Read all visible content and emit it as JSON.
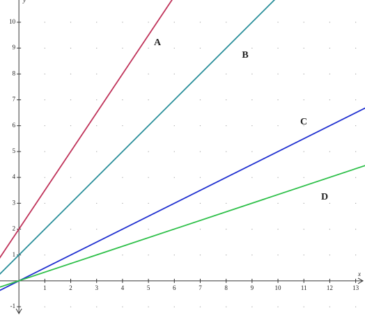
{
  "chart_data": {
    "type": "line",
    "xlabel": "x",
    "ylabel": "y",
    "x": [
      -1,
      14
    ],
    "series": [
      {
        "name": "A",
        "color": "#c0335a",
        "values": [
          0.5,
          23
        ]
      },
      {
        "name": "B",
        "color": "#2a8f9a",
        "values": [
          0,
          15
        ]
      },
      {
        "name": "C",
        "color": "#1f2fd0",
        "values": [
          -0.5,
          7
        ]
      },
      {
        "name": "D",
        "color": "#2fc04a",
        "values": [
          -0.33,
          4.67
        ]
      }
    ],
    "xlim": [
      -0.73,
      13.36
    ],
    "ylim": [
      -1.32,
      10.86
    ],
    "xticks": [
      1,
      2,
      3,
      4,
      5,
      6,
      7,
      8,
      9,
      10,
      11,
      12,
      13
    ],
    "yticks": [
      -1,
      1,
      2,
      3,
      4,
      5,
      6,
      7,
      8,
      9,
      10
    ],
    "grid": true
  }
}
